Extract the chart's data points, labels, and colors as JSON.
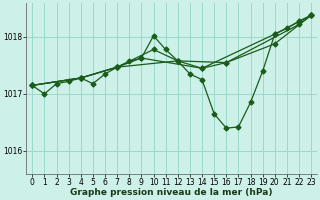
{
  "background_color": "#cdf0e8",
  "grid_color": "#99d9cc",
  "line_color": "#1a5c1a",
  "xlabel": "Graphe pression niveau de la mer (hPa)",
  "ylim": [
    1015.6,
    1018.6
  ],
  "xlim": [
    -0.5,
    23.5
  ],
  "yticks": [
    1016,
    1017,
    1018
  ],
  "xticks": [
    0,
    1,
    2,
    3,
    4,
    5,
    6,
    7,
    8,
    9,
    10,
    11,
    12,
    13,
    14,
    15,
    16,
    17,
    18,
    19,
    20,
    21,
    22,
    23
  ],
  "series_zigzag": {
    "x": [
      0,
      1,
      2,
      3,
      4,
      5,
      6,
      7,
      8,
      9,
      10,
      11,
      12,
      13,
      14,
      15,
      16,
      17,
      18,
      19,
      20,
      21,
      22,
      23
    ],
    "y": [
      1017.15,
      1017.0,
      1017.18,
      1017.22,
      1017.28,
      1017.18,
      1017.35,
      1017.47,
      1017.57,
      1017.63,
      1018.02,
      1017.78,
      1017.58,
      1017.35,
      1017.25,
      1016.65,
      1016.4,
      1016.42,
      1016.85,
      1017.4,
      1018.05,
      1018.15,
      1018.28,
      1018.38
    ]
  },
  "series_lines": [
    {
      "x": [
        0,
        4,
        7,
        10,
        12,
        14,
        20,
        23
      ],
      "y": [
        1017.15,
        1017.28,
        1017.47,
        1017.78,
        1017.58,
        1017.45,
        1018.05,
        1018.38
      ]
    },
    {
      "x": [
        0,
        4,
        7,
        9,
        14,
        16,
        22,
        23
      ],
      "y": [
        1017.15,
        1017.28,
        1017.47,
        1017.63,
        1017.45,
        1017.55,
        1018.22,
        1018.38
      ]
    },
    {
      "x": [
        0,
        4,
        7,
        12,
        16,
        20,
        23
      ],
      "y": [
        1017.15,
        1017.28,
        1017.47,
        1017.58,
        1017.55,
        1017.88,
        1018.38
      ]
    }
  ],
  "marker": "D",
  "marker_size": 2.5,
  "line_width": 0.9,
  "tick_fontsize": 5.5,
  "xlabel_fontsize": 6.5
}
